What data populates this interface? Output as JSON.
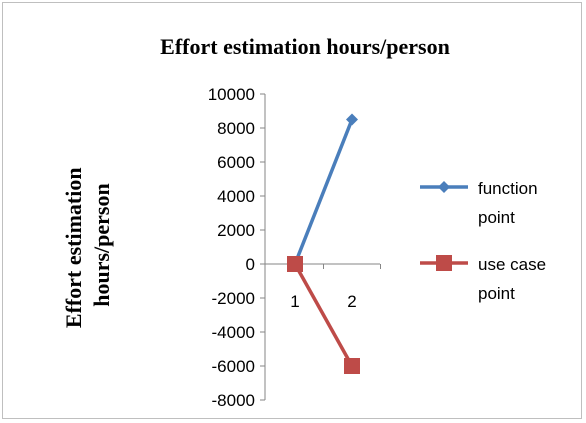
{
  "chart_data": {
    "type": "line",
    "title": "Effort estimation hours/person",
    "xlabel": "",
    "ylabel": "Effort estimation hours/person",
    "ylim": [
      -8000,
      10000
    ],
    "ytick_step": 2000,
    "categories": [
      "1",
      "2"
    ],
    "grid": false,
    "legend_position": "right",
    "series": [
      {
        "name": "function point",
        "legend_lines": [
          "function",
          "point"
        ],
        "values": [
          0,
          8500
        ],
        "color": "#4a7ebb",
        "marker": "diamond"
      },
      {
        "name": "use case point",
        "legend_lines": [
          "use case",
          "point"
        ],
        "values": [
          0,
          -6000
        ],
        "color": "#be4b48",
        "marker": "square"
      }
    ]
  }
}
